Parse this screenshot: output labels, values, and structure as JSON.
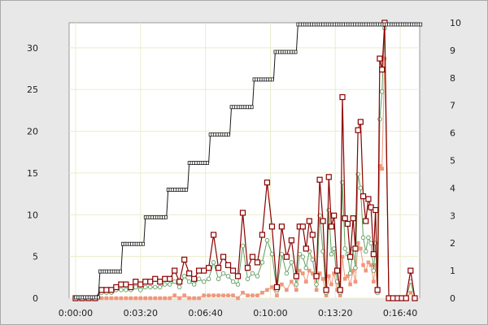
{
  "chart_data": {
    "type": "line",
    "x_unit": "seconds",
    "x_tick_labels": [
      "0:00:00",
      "0:03:20",
      "0:06:40",
      "0:10:00",
      "0:13:20",
      "0:16:40"
    ],
    "x_tick_values": [
      0,
      200,
      400,
      600,
      800,
      1000
    ],
    "xlim": [
      -20,
      1060
    ],
    "y_left": {
      "ylim": [
        0,
        33
      ],
      "ticks": [
        0,
        5,
        10,
        15,
        20,
        25,
        30
      ]
    },
    "y_right": {
      "ylim": [
        0,
        10
      ],
      "ticks": [
        0,
        1,
        2,
        3,
        4,
        5,
        6,
        7,
        8,
        9,
        10
      ]
    },
    "grid": true,
    "legend": "none",
    "colors": {
      "step": "#1a1a1a",
      "primary": "#8b0000",
      "secondary": "#5f9e5f",
      "tertiary": "#f0977a",
      "plot_bg": "#ffffff",
      "grid": "#ececcc"
    },
    "series": [
      {
        "axis": "left",
        "marker": "dash",
        "color_key": "step",
        "points": [
          [
            0,
            0.1
          ],
          [
            70,
            0.1
          ],
          [
            75,
            3.2
          ],
          [
            140,
            3.2
          ],
          [
            145,
            6.5
          ],
          [
            210,
            6.5
          ],
          [
            215,
            9.7
          ],
          [
            280,
            9.7
          ],
          [
            285,
            13.0
          ],
          [
            345,
            13.0
          ],
          [
            350,
            16.2
          ],
          [
            410,
            16.2
          ],
          [
            415,
            19.6
          ],
          [
            475,
            19.6
          ],
          [
            480,
            22.9
          ],
          [
            545,
            22.9
          ],
          [
            550,
            26.2
          ],
          [
            610,
            26.2
          ],
          [
            615,
            29.5
          ],
          [
            680,
            29.5
          ],
          [
            685,
            32.8
          ],
          [
            1065,
            32.8
          ]
        ]
      },
      {
        "axis": "right",
        "marker": "square",
        "color_key": "primary",
        "points": [
          [
            0,
            0.0
          ],
          [
            20,
            0.0
          ],
          [
            40,
            0.0
          ],
          [
            60,
            0.0
          ],
          [
            80,
            0.3
          ],
          [
            95,
            0.3
          ],
          [
            110,
            0.3
          ],
          [
            125,
            0.4
          ],
          [
            140,
            0.5
          ],
          [
            155,
            0.5
          ],
          [
            170,
            0.4
          ],
          [
            185,
            0.6
          ],
          [
            200,
            0.5
          ],
          [
            215,
            0.6
          ],
          [
            230,
            0.6
          ],
          [
            245,
            0.7
          ],
          [
            260,
            0.6
          ],
          [
            275,
            0.7
          ],
          [
            290,
            0.7
          ],
          [
            305,
            1.0
          ],
          [
            320,
            0.6
          ],
          [
            335,
            1.4
          ],
          [
            350,
            0.9
          ],
          [
            365,
            0.7
          ],
          [
            380,
            1.0
          ],
          [
            395,
            1.0
          ],
          [
            410,
            1.1
          ],
          [
            425,
            2.3
          ],
          [
            440,
            1.1
          ],
          [
            455,
            1.5
          ],
          [
            470,
            1.2
          ],
          [
            485,
            1.0
          ],
          [
            500,
            0.8
          ],
          [
            515,
            3.1
          ],
          [
            530,
            1.1
          ],
          [
            545,
            1.5
          ],
          [
            560,
            1.3
          ],
          [
            575,
            2.3
          ],
          [
            590,
            4.2
          ],
          [
            605,
            2.6
          ],
          [
            620,
            0.4
          ],
          [
            635,
            2.6
          ],
          [
            650,
            1.5
          ],
          [
            665,
            2.1
          ],
          [
            680,
            0.8
          ],
          [
            690,
            2.6
          ],
          [
            700,
            2.6
          ],
          [
            710,
            1.8
          ],
          [
            720,
            2.8
          ],
          [
            730,
            2.3
          ],
          [
            742,
            0.8
          ],
          [
            752,
            4.3
          ],
          [
            762,
            2.8
          ],
          [
            772,
            0.3
          ],
          [
            780,
            4.4
          ],
          [
            788,
            2.6
          ],
          [
            796,
            3.0
          ],
          [
            806,
            1.0
          ],
          [
            815,
            0.3
          ],
          [
            822,
            7.3
          ],
          [
            830,
            2.9
          ],
          [
            838,
            2.7
          ],
          [
            846,
            1.5
          ],
          [
            855,
            2.9
          ],
          [
            862,
            1.8
          ],
          [
            870,
            6.1
          ],
          [
            878,
            6.4
          ],
          [
            886,
            3.7
          ],
          [
            894,
            2.8
          ],
          [
            902,
            3.6
          ],
          [
            910,
            3.3
          ],
          [
            918,
            1.6
          ],
          [
            924,
            3.2
          ],
          [
            930,
            0.3
          ],
          [
            937,
            8.7
          ],
          [
            944,
            8.3
          ],
          [
            952,
            10.0
          ],
          [
            965,
            0.0
          ],
          [
            978,
            0.0
          ],
          [
            992,
            0.0
          ],
          [
            1005,
            0.0
          ],
          [
            1018,
            0.0
          ],
          [
            1032,
            1.0
          ],
          [
            1045,
            0.0
          ]
        ]
      },
      {
        "axis": "right",
        "marker": "circle",
        "color_key": "secondary",
        "points": [
          [
            0,
            0.0
          ],
          [
            20,
            0.0
          ],
          [
            40,
            0.0
          ],
          [
            60,
            0.0
          ],
          [
            80,
            0.2
          ],
          [
            95,
            0.2
          ],
          [
            110,
            0.2
          ],
          [
            125,
            0.3
          ],
          [
            140,
            0.3
          ],
          [
            155,
            0.3
          ],
          [
            170,
            0.3
          ],
          [
            185,
            0.4
          ],
          [
            200,
            0.3
          ],
          [
            215,
            0.4
          ],
          [
            230,
            0.4
          ],
          [
            245,
            0.4
          ],
          [
            260,
            0.4
          ],
          [
            275,
            0.5
          ],
          [
            290,
            0.5
          ],
          [
            305,
            0.6
          ],
          [
            320,
            0.4
          ],
          [
            335,
            0.8
          ],
          [
            350,
            0.6
          ],
          [
            365,
            0.5
          ],
          [
            380,
            0.7
          ],
          [
            395,
            0.6
          ],
          [
            410,
            0.7
          ],
          [
            425,
            1.3
          ],
          [
            440,
            0.7
          ],
          [
            455,
            0.9
          ],
          [
            470,
            0.8
          ],
          [
            485,
            0.6
          ],
          [
            500,
            0.5
          ],
          [
            515,
            1.9
          ],
          [
            530,
            0.7
          ],
          [
            545,
            0.9
          ],
          [
            560,
            0.8
          ],
          [
            575,
            1.3
          ],
          [
            590,
            2.1
          ],
          [
            605,
            1.6
          ],
          [
            620,
            0.3
          ],
          [
            635,
            1.6
          ],
          [
            650,
            0.9
          ],
          [
            665,
            1.3
          ],
          [
            680,
            0.5
          ],
          [
            690,
            1.6
          ],
          [
            700,
            1.5
          ],
          [
            710,
            1.1
          ],
          [
            720,
            1.7
          ],
          [
            730,
            1.4
          ],
          [
            742,
            0.5
          ],
          [
            752,
            3.0
          ],
          [
            762,
            1.7
          ],
          [
            772,
            0.2
          ],
          [
            780,
            3.2
          ],
          [
            788,
            1.6
          ],
          [
            796,
            1.8
          ],
          [
            806,
            0.6
          ],
          [
            815,
            0.2
          ],
          [
            822,
            4.2
          ],
          [
            830,
            1.8
          ],
          [
            838,
            1.6
          ],
          [
            846,
            0.9
          ],
          [
            855,
            1.8
          ],
          [
            862,
            1.1
          ],
          [
            870,
            4.5
          ],
          [
            878,
            4.0
          ],
          [
            886,
            2.2
          ],
          [
            894,
            1.7
          ],
          [
            902,
            2.2
          ],
          [
            910,
            2.0
          ],
          [
            918,
            1.0
          ],
          [
            924,
            2.0
          ],
          [
            930,
            0.2
          ],
          [
            937,
            6.5
          ],
          [
            944,
            7.5
          ],
          [
            952,
            9.8
          ],
          [
            965,
            0.0
          ],
          [
            978,
            0.0
          ],
          [
            992,
            0.0
          ],
          [
            1005,
            0.0
          ],
          [
            1018,
            0.0
          ],
          [
            1032,
            0.6
          ],
          [
            1045,
            0.0
          ]
        ]
      },
      {
        "axis": "right",
        "marker": "filled-square",
        "color_key": "tertiary",
        "points": [
          [
            0,
            0.0
          ],
          [
            20,
            0.0
          ],
          [
            40,
            0.0
          ],
          [
            60,
            0.0
          ],
          [
            80,
            0.0
          ],
          [
            95,
            0.0
          ],
          [
            110,
            0.0
          ],
          [
            125,
            0.0
          ],
          [
            140,
            0.0
          ],
          [
            155,
            0.0
          ],
          [
            170,
            0.0
          ],
          [
            185,
            0.0
          ],
          [
            200,
            0.0
          ],
          [
            215,
            0.0
          ],
          [
            230,
            0.0
          ],
          [
            245,
            0.0
          ],
          [
            260,
            0.0
          ],
          [
            275,
            0.0
          ],
          [
            290,
            0.0
          ],
          [
            305,
            0.1
          ],
          [
            320,
            0.0
          ],
          [
            335,
            0.1
          ],
          [
            350,
            0.0
          ],
          [
            365,
            0.0
          ],
          [
            380,
            0.0
          ],
          [
            395,
            0.1
          ],
          [
            410,
            0.1
          ],
          [
            425,
            0.1
          ],
          [
            440,
            0.1
          ],
          [
            455,
            0.1
          ],
          [
            470,
            0.1
          ],
          [
            485,
            0.1
          ],
          [
            500,
            0.0
          ],
          [
            515,
            0.2
          ],
          [
            530,
            0.1
          ],
          [
            545,
            0.1
          ],
          [
            560,
            0.1
          ],
          [
            575,
            0.2
          ],
          [
            590,
            0.3
          ],
          [
            605,
            0.4
          ],
          [
            620,
            0.1
          ],
          [
            635,
            0.5
          ],
          [
            650,
            0.3
          ],
          [
            665,
            0.6
          ],
          [
            680,
            0.3
          ],
          [
            690,
            1.0
          ],
          [
            700,
            0.9
          ],
          [
            710,
            0.6
          ],
          [
            720,
            1.0
          ],
          [
            730,
            0.9
          ],
          [
            742,
            0.3
          ],
          [
            752,
            0.9
          ],
          [
            762,
            0.7
          ],
          [
            772,
            0.1
          ],
          [
            780,
            0.8
          ],
          [
            788,
            0.5
          ],
          [
            796,
            0.9
          ],
          [
            806,
            0.3
          ],
          [
            815,
            0.1
          ],
          [
            822,
            1.5
          ],
          [
            830,
            0.7
          ],
          [
            838,
            0.8
          ],
          [
            846,
            0.5
          ],
          [
            855,
            1.0
          ],
          [
            862,
            0.6
          ],
          [
            870,
            2.0
          ],
          [
            878,
            1.8
          ],
          [
            886,
            1.2
          ],
          [
            894,
            1.0
          ],
          [
            902,
            1.3
          ],
          [
            910,
            1.2
          ],
          [
            918,
            0.6
          ],
          [
            924,
            1.2
          ],
          [
            930,
            0.2
          ],
          [
            937,
            4.8
          ],
          [
            944,
            4.7
          ],
          [
            952,
            8.7
          ],
          [
            965,
            0.0
          ],
          [
            978,
            0.0
          ],
          [
            992,
            0.0
          ],
          [
            1005,
            0.0
          ],
          [
            1018,
            0.0
          ],
          [
            1032,
            0.2
          ],
          [
            1045,
            0.0
          ]
        ]
      }
    ]
  }
}
